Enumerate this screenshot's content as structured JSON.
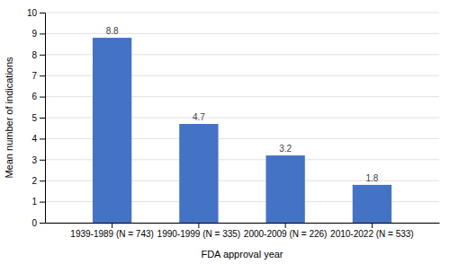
{
  "chart_data": {
    "type": "bar",
    "categories": [
      "1939-1989 (N = 743)",
      "1990-1999 (N = 335)",
      "2000-2009 (N = 226)",
      "2010-2022 (N = 533)"
    ],
    "values": [
      8.8,
      4.7,
      3.2,
      1.8
    ],
    "color": "#4472C4",
    "xlabel": "FDA approval year",
    "ylabel": "Mean number of indications",
    "ylim": [
      0,
      10
    ],
    "yticks": [
      0,
      1,
      2,
      3,
      4,
      5,
      6,
      7,
      8,
      9,
      10
    ],
    "grid": true,
    "data_labels": true
  }
}
